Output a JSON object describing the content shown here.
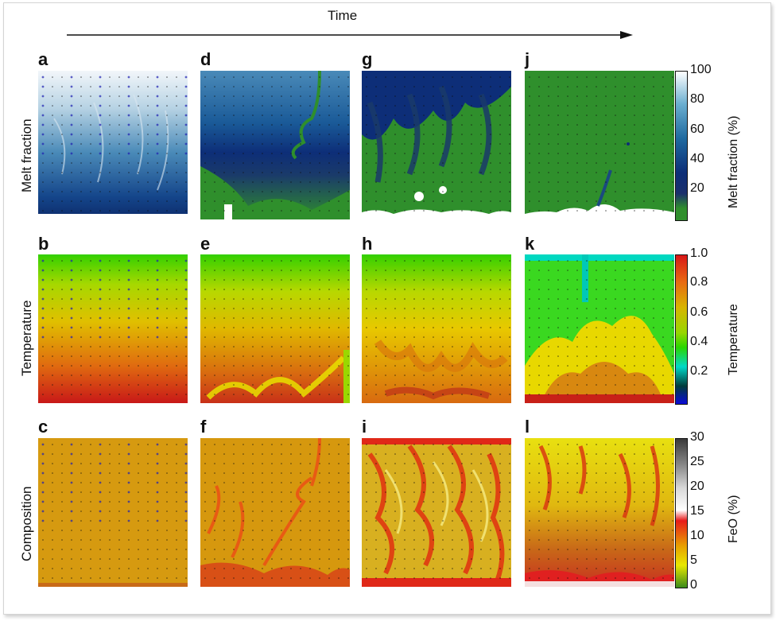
{
  "header": {
    "time_label": "Time"
  },
  "rows": [
    {
      "label": "Melt fraction",
      "panels": [
        "a",
        "d",
        "g",
        "j"
      ]
    },
    {
      "label": "Temperature",
      "panels": [
        "b",
        "e",
        "h",
        "k"
      ]
    },
    {
      "label": "Composition",
      "panels": [
        "c",
        "f",
        "i",
        "l"
      ]
    }
  ],
  "colorbars": [
    {
      "label": "Melt fraction (%)",
      "ticks": [
        "100",
        "80",
        "60",
        "40",
        "20"
      ],
      "colors": [
        "#ffffff",
        "#6aaed0",
        "#1f6aa0",
        "#0d2e78",
        "#1a2f6c",
        "#2f8f2c"
      ]
    },
    {
      "label": "Temperature",
      "ticks": [
        "1.0",
        "0.8",
        "0.6",
        "0.4",
        "0.2"
      ],
      "colors": [
        "#d81717",
        "#e86a12",
        "#d8b400",
        "#99d600",
        "#2ad600",
        "#00d8c8",
        "#003c3c",
        "#0a0ad8"
      ]
    },
    {
      "label": "FeO (%)",
      "ticks": [
        "30",
        "25",
        "20",
        "15",
        "10",
        "5",
        "0"
      ],
      "colors": [
        "#3a3a3a",
        "#8a8a8a",
        "#d8d8d8",
        "#ffffff",
        "#e81a1a",
        "#e8a000",
        "#e8e800",
        "#3a8a1a"
      ]
    }
  ]
}
